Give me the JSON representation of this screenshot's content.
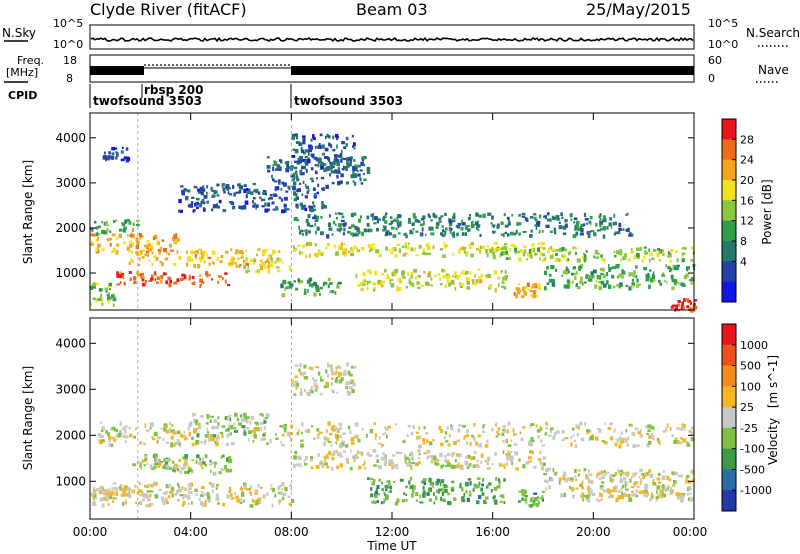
{
  "header": {
    "station": "Clyde River (fitACF)",
    "beam": "Beam 03",
    "date": "25/May/2015"
  },
  "summary_panels": {
    "nsky_label": "N.Sky",
    "nsky_ticks": [
      "10^5",
      "10^0"
    ],
    "nsearch_label": "N.Search",
    "nsearch_ticks": [
      "10^5",
      "10^0"
    ],
    "freq_label": "Freq.",
    "freq_unit": "[MHz]",
    "freq_ticks": [
      "18",
      "8"
    ],
    "nave_label": "Nave",
    "nave_ticks": [
      "60",
      "0"
    ],
    "cpid_label": "CPID",
    "cpid_segments": [
      {
        "name": "twofsound 3503",
        "start_hour": 0.0,
        "end_hour": 1.9
      },
      {
        "name": "rbsp 200",
        "start_hour": 1.9,
        "end_hour": 8.0
      },
      {
        "name": "twofsound 3503",
        "start_hour": 8.0,
        "end_hour": 24.0
      }
    ]
  },
  "chart_data": [
    {
      "type": "heatmap",
      "title": "",
      "xlabel": "Time UT",
      "ylabel": "Slant Range [km]",
      "xlim_hours": [
        0,
        24
      ],
      "ylim": [
        180,
        4550
      ],
      "x_tick_labels": [
        "00:00",
        "04:00",
        "08:00",
        "12:00",
        "16:00",
        "20:00",
        "00:00"
      ],
      "y_ticks": [
        1000,
        2000,
        3000,
        4000
      ],
      "colorbar": {
        "label": "Power [dB]",
        "tick_labels": [
          "28",
          "24",
          "20",
          "16",
          "12",
          "8",
          "4"
        ],
        "colors": [
          "#e8141b",
          "#f06a1c",
          "#f5a41c",
          "#f2e21e",
          "#8cc63f",
          "#2e9e4a",
          "#24786b",
          "#2542a6",
          "#1414e6"
        ],
        "range": [
          0,
          30
        ]
      },
      "regions": [
        {
          "t": [
            0.0,
            3.5
          ],
          "r": [
            1500,
            1900
          ],
          "level": 22
        },
        {
          "t": [
            1.5,
            7.5
          ],
          "r": [
            1200,
            1550
          ],
          "level": 20
        },
        {
          "t": [
            1.0,
            5.5
          ],
          "r": [
            750,
            1050
          ],
          "level": 26
        },
        {
          "t": [
            5.5,
            8.0
          ],
          "r": [
            1050,
            1350
          ],
          "level": 18
        },
        {
          "t": [
            0.0,
            1.0
          ],
          "r": [
            300,
            800
          ],
          "level": 14
        },
        {
          "t": [
            0.0,
            2.0
          ],
          "r": [
            1900,
            2200
          ],
          "level": 12
        },
        {
          "t": [
            3.5,
            9.5
          ],
          "r": [
            2400,
            3000
          ],
          "level": 6
        },
        {
          "t": [
            7.0,
            11.0
          ],
          "r": [
            3000,
            3600
          ],
          "level": 7
        },
        {
          "t": [
            8.0,
            10.5
          ],
          "r": [
            3300,
            4100
          ],
          "level": 6
        },
        {
          "t": [
            0.5,
            1.5
          ],
          "r": [
            3500,
            3800
          ],
          "level": 5
        },
        {
          "t": [
            8.0,
            21.5
          ],
          "r": [
            1850,
            2350
          ],
          "level": 9
        },
        {
          "t": [
            8.0,
            18.0
          ],
          "r": [
            1400,
            1700
          ],
          "level": 18
        },
        {
          "t": [
            16.0,
            24.0
          ],
          "r": [
            1300,
            1600
          ],
          "level": 15
        },
        {
          "t": [
            10.5,
            16.5
          ],
          "r": [
            650,
            1100
          ],
          "level": 17
        },
        {
          "t": [
            16.8,
            17.8
          ],
          "r": [
            500,
            800
          ],
          "level": 22
        },
        {
          "t": [
            7.5,
            10.0
          ],
          "r": [
            550,
            900
          ],
          "level": 12
        },
        {
          "t": [
            18.0,
            24.0
          ],
          "r": [
            700,
            1200
          ],
          "level": 12
        },
        {
          "t": [
            23.0,
            24.0
          ],
          "r": [
            200,
            450
          ],
          "level": 27
        }
      ]
    },
    {
      "type": "heatmap",
      "title": "",
      "xlabel": "Time UT",
      "ylabel": "Slant Range [km]",
      "xlim_hours": [
        0,
        24
      ],
      "ylim": [
        180,
        4550
      ],
      "x_tick_labels": [
        "00:00",
        "04:00",
        "08:00",
        "12:00",
        "16:00",
        "20:00",
        "00:00"
      ],
      "y_ticks": [
        1000,
        2000,
        3000,
        4000
      ],
      "colorbar": {
        "label": "Velocity",
        "unit": "[m s^-1]",
        "tick_labels": [
          "1000",
          "500",
          "100",
          "25",
          "-25",
          "-100",
          "-500",
          "-1000"
        ],
        "colors": [
          "#e8141b",
          "#ef4f1c",
          "#f28c1e",
          "#f5b623",
          "#c8c8c8",
          "#7fc241",
          "#3e9a48",
          "#2b6ba8",
          "#2439a8"
        ],
        "range": [
          -1200,
          1200
        ]
      },
      "regions": [
        {
          "t": [
            0.0,
            8.0
          ],
          "r": [
            500,
            1000
          ],
          "level": 0
        },
        {
          "t": [
            0.0,
            1.5
          ],
          "r": [
            600,
            900
          ],
          "level": 80
        },
        {
          "t": [
            2.0,
            5.5
          ],
          "r": [
            1200,
            1600
          ],
          "level": -250
        },
        {
          "t": [
            4.0,
            7.0
          ],
          "r": [
            2000,
            2500
          ],
          "level": -220
        },
        {
          "t": [
            1.5,
            4.5
          ],
          "r": [
            1300,
            1500
          ],
          "level": 60
        },
        {
          "t": [
            0.0,
            24.0
          ],
          "r": [
            1800,
            2300
          ],
          "level": 0
        },
        {
          "t": [
            8.0,
            10.5
          ],
          "r": [
            2900,
            3600
          ],
          "level": 0
        },
        {
          "t": [
            11.0,
            16.5
          ],
          "r": [
            550,
            1100
          ],
          "level": -450
        },
        {
          "t": [
            17.0,
            18.0
          ],
          "r": [
            500,
            850
          ],
          "level": -400
        },
        {
          "t": [
            18.0,
            24.0
          ],
          "r": [
            700,
            1300
          ],
          "level": 0
        },
        {
          "t": [
            19.5,
            24.0
          ],
          "r": [
            600,
            900
          ],
          "level": 90
        },
        {
          "t": [
            8.0,
            18.0
          ],
          "r": [
            1300,
            1700
          ],
          "level": 0
        }
      ]
    }
  ]
}
